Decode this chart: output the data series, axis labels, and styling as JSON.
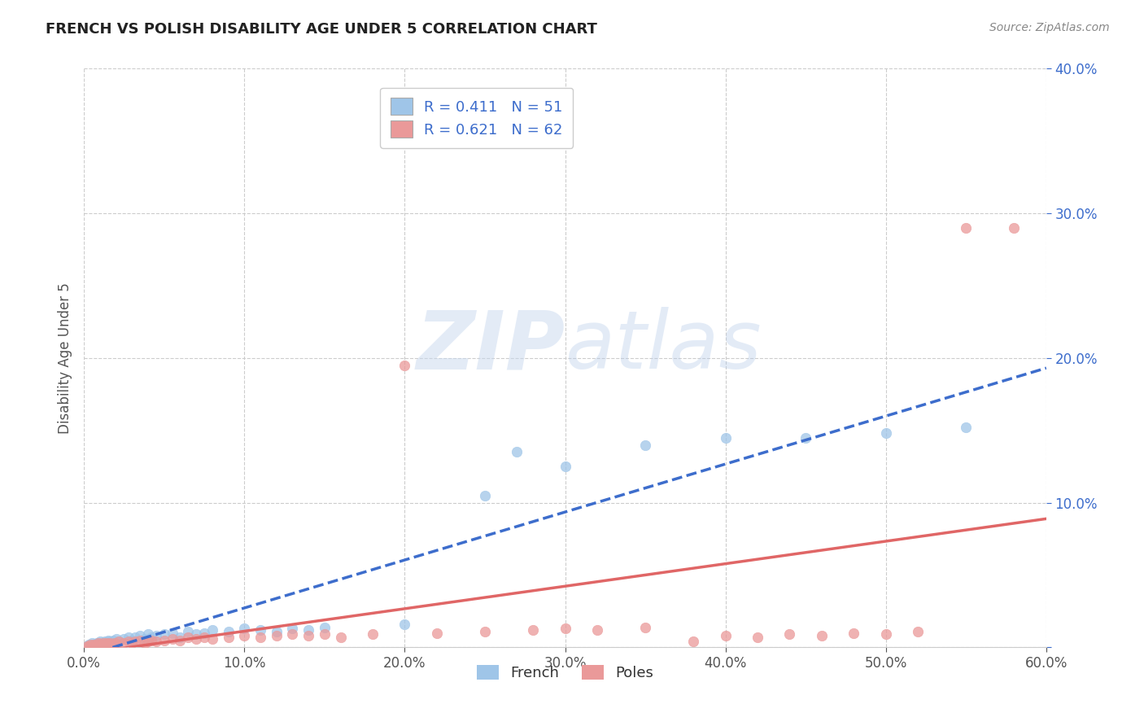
{
  "title": "FRENCH VS POLISH DISABILITY AGE UNDER 5 CORRELATION CHART",
  "source": "Source: ZipAtlas.com",
  "ylabel": "Disability Age Under 5",
  "xlim": [
    0.0,
    0.6
  ],
  "ylim": [
    0.0,
    0.4
  ],
  "french_R": 0.411,
  "french_N": 51,
  "polish_R": 0.621,
  "polish_N": 62,
  "french_color": "#9fc5e8",
  "polish_color": "#ea9999",
  "french_line_color": "#3d6dcc",
  "polish_line_color": "#e06666",
  "title_color": "#222222",
  "legend_text_color": "#3d6dcc",
  "source_color": "#888888",
  "watermark_color": "#dde8f5",
  "french_scatter": [
    [
      0.002,
      0.001
    ],
    [
      0.003,
      0.002
    ],
    [
      0.004,
      0.001
    ],
    [
      0.005,
      0.003
    ],
    [
      0.006,
      0.002
    ],
    [
      0.007,
      0.001
    ],
    [
      0.008,
      0.003
    ],
    [
      0.009,
      0.002
    ],
    [
      0.01,
      0.004
    ],
    [
      0.011,
      0.003
    ],
    [
      0.012,
      0.002
    ],
    [
      0.013,
      0.004
    ],
    [
      0.014,
      0.003
    ],
    [
      0.015,
      0.005
    ],
    [
      0.016,
      0.004
    ],
    [
      0.017,
      0.003
    ],
    [
      0.018,
      0.005
    ],
    [
      0.02,
      0.006
    ],
    [
      0.022,
      0.004
    ],
    [
      0.025,
      0.006
    ],
    [
      0.028,
      0.007
    ],
    [
      0.03,
      0.005
    ],
    [
      0.032,
      0.007
    ],
    [
      0.035,
      0.008
    ],
    [
      0.038,
      0.006
    ],
    [
      0.04,
      0.009
    ],
    [
      0.042,
      0.007
    ],
    [
      0.045,
      0.008
    ],
    [
      0.05,
      0.009
    ],
    [
      0.055,
      0.01
    ],
    [
      0.06,
      0.007
    ],
    [
      0.065,
      0.011
    ],
    [
      0.07,
      0.009
    ],
    [
      0.075,
      0.01
    ],
    [
      0.08,
      0.012
    ],
    [
      0.09,
      0.011
    ],
    [
      0.1,
      0.013
    ],
    [
      0.11,
      0.012
    ],
    [
      0.12,
      0.011
    ],
    [
      0.13,
      0.013
    ],
    [
      0.14,
      0.012
    ],
    [
      0.15,
      0.014
    ],
    [
      0.2,
      0.016
    ],
    [
      0.25,
      0.105
    ],
    [
      0.27,
      0.135
    ],
    [
      0.3,
      0.125
    ],
    [
      0.35,
      0.14
    ],
    [
      0.4,
      0.145
    ],
    [
      0.45,
      0.145
    ],
    [
      0.5,
      0.148
    ],
    [
      0.55,
      0.152
    ]
  ],
  "polish_scatter": [
    [
      0.002,
      0.001
    ],
    [
      0.003,
      0.001
    ],
    [
      0.004,
      0.002
    ],
    [
      0.005,
      0.001
    ],
    [
      0.006,
      0.002
    ],
    [
      0.007,
      0.001
    ],
    [
      0.008,
      0.002
    ],
    [
      0.009,
      0.003
    ],
    [
      0.01,
      0.002
    ],
    [
      0.011,
      0.001
    ],
    [
      0.012,
      0.003
    ],
    [
      0.013,
      0.002
    ],
    [
      0.014,
      0.003
    ],
    [
      0.015,
      0.002
    ],
    [
      0.016,
      0.003
    ],
    [
      0.017,
      0.001
    ],
    [
      0.018,
      0.002
    ],
    [
      0.019,
      0.003
    ],
    [
      0.02,
      0.002
    ],
    [
      0.022,
      0.004
    ],
    [
      0.025,
      0.003
    ],
    [
      0.028,
      0.004
    ],
    [
      0.03,
      0.003
    ],
    [
      0.032,
      0.004
    ],
    [
      0.035,
      0.005
    ],
    [
      0.038,
      0.003
    ],
    [
      0.04,
      0.004
    ],
    [
      0.042,
      0.005
    ],
    [
      0.045,
      0.004
    ],
    [
      0.05,
      0.005
    ],
    [
      0.055,
      0.006
    ],
    [
      0.06,
      0.005
    ],
    [
      0.065,
      0.007
    ],
    [
      0.07,
      0.006
    ],
    [
      0.075,
      0.007
    ],
    [
      0.08,
      0.006
    ],
    [
      0.09,
      0.007
    ],
    [
      0.1,
      0.008
    ],
    [
      0.11,
      0.007
    ],
    [
      0.12,
      0.008
    ],
    [
      0.13,
      0.009
    ],
    [
      0.14,
      0.008
    ],
    [
      0.15,
      0.009
    ],
    [
      0.16,
      0.007
    ],
    [
      0.18,
      0.009
    ],
    [
      0.2,
      0.195
    ],
    [
      0.22,
      0.01
    ],
    [
      0.25,
      0.011
    ],
    [
      0.28,
      0.012
    ],
    [
      0.3,
      0.013
    ],
    [
      0.32,
      0.012
    ],
    [
      0.35,
      0.014
    ],
    [
      0.38,
      0.004
    ],
    [
      0.4,
      0.008
    ],
    [
      0.42,
      0.007
    ],
    [
      0.44,
      0.009
    ],
    [
      0.46,
      0.008
    ],
    [
      0.48,
      0.01
    ],
    [
      0.5,
      0.009
    ],
    [
      0.52,
      0.011
    ],
    [
      0.55,
      0.29
    ],
    [
      0.58,
      0.29
    ]
  ]
}
